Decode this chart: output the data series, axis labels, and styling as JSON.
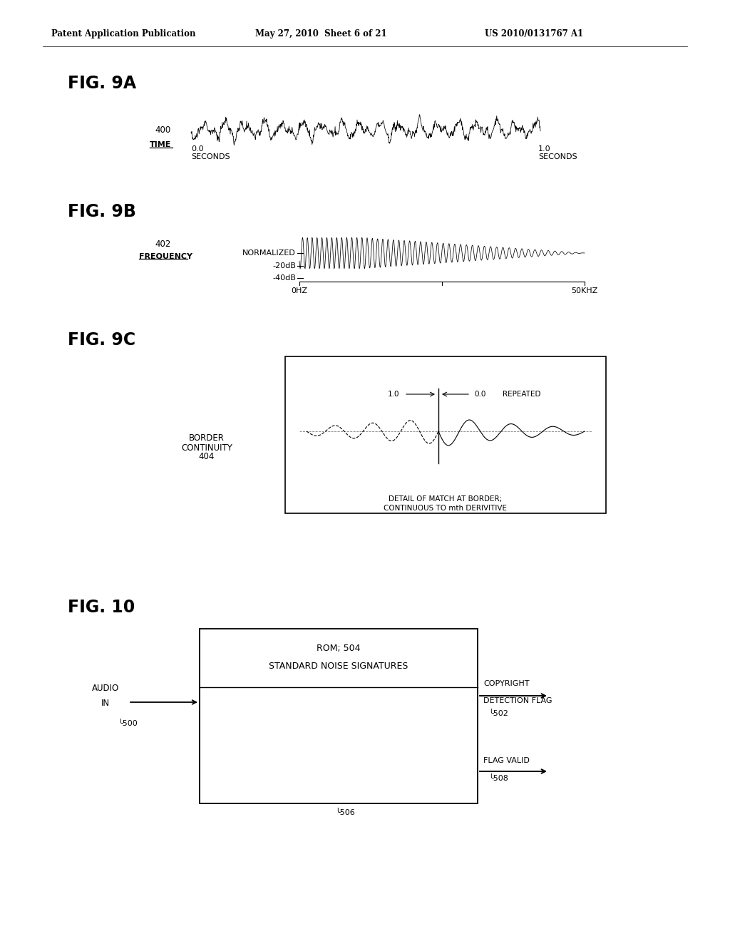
{
  "bg_color": "#ffffff",
  "header_text": "Patent Application Publication",
  "header_date": "May 27, 2010  Sheet 6 of 21",
  "header_patent": "US 2010/0131767 A1",
  "fig9a_label": "FIG. 9A",
  "fig9b_label": "FIG. 9B",
  "fig9c_label": "FIG. 9C",
  "fig10_label": "FIG. 10",
  "label_400": "400",
  "label_time": "TIME",
  "label_00_sec": "0.0",
  "label_00_seconds": "SECONDS",
  "label_10_sec": "1.0",
  "label_10_seconds": "SECONDS",
  "label_402": "402",
  "label_frequency": "FREQUENCY",
  "label_normalized": "NORMALIZED",
  "label_minus20db": "-20dB",
  "label_minus40db": "-40dB",
  "label_0hz": "0HZ",
  "label_50khz": "50KHZ",
  "label_border_line1": "BORDER",
  "label_border_line2": "CONTINUITY",
  "label_border_line3": "404",
  "label_10": "1.0",
  "label_00": "0.0",
  "label_repeated": "REPEATED",
  "label_detail_line1": "DETAIL OF MATCH AT BORDER;",
  "label_detail_line2": "CONTINUOUS TO mth DERIVITIVE",
  "label_rom": "ROM; 504",
  "label_standard": "STANDARD NOISE SIGNATURES",
  "label_audio_in_1": "AUDIO",
  "label_audio_in_2": "IN",
  "label_500": "500",
  "label_502": "502",
  "label_506": "506",
  "label_508": "508",
  "label_copyright_1": "COPYRIGHT",
  "label_copyright_2": "DETECTION FLAG",
  "label_flag_valid": "FLAG VALID"
}
